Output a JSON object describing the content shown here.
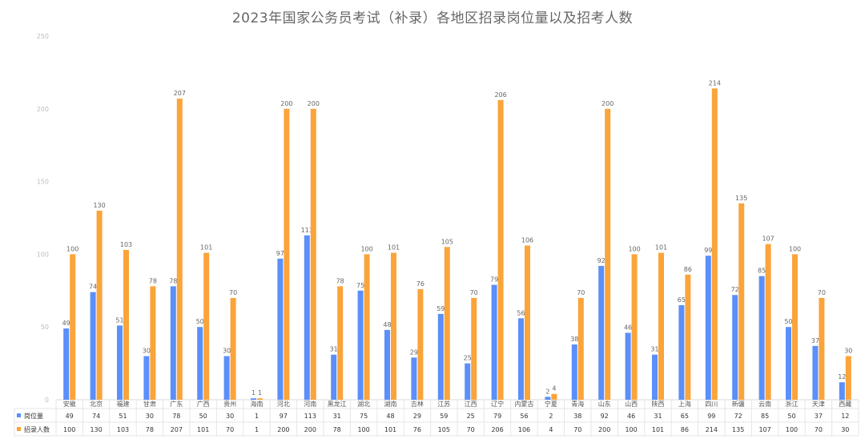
{
  "chart_data": {
    "type": "bar",
    "title": "2023年国家公务员考试（补录）各地区招录岗位量以及招考人数",
    "ylim": [
      0,
      250
    ],
    "yticks": [
      0,
      50,
      100,
      150,
      200,
      250
    ],
    "grid": false,
    "legend_position": "bottom-left-table",
    "categories": [
      "安徽",
      "北京",
      "福建",
      "甘肃",
      "广东",
      "广西",
      "贵州",
      "海南",
      "河北",
      "河南",
      "黑龙江",
      "湖北",
      "湖南",
      "吉林",
      "江苏",
      "江西",
      "辽宁",
      "内蒙古",
      "宁夏",
      "青海",
      "山东",
      "山西",
      "陕西",
      "上海",
      "四川",
      "新疆",
      "云南",
      "浙江",
      "天津",
      "西藏"
    ],
    "series": [
      {
        "name": "岗位量",
        "color": "#5b8ff9",
        "values": [
          49,
          74,
          51,
          30,
          78,
          50,
          30,
          1,
          97,
          113,
          31,
          75,
          48,
          29,
          59,
          25,
          79,
          56,
          2,
          38,
          92,
          46,
          31,
          65,
          99,
          72,
          85,
          50,
          37,
          12
        ]
      },
      {
        "name": "招录人数",
        "color": "#faa43a",
        "values": [
          100,
          130,
          103,
          78,
          207,
          101,
          70,
          1,
          200,
          200,
          78,
          100,
          101,
          76,
          105,
          70,
          206,
          106,
          4,
          70,
          200,
          100,
          101,
          86,
          214,
          135,
          107,
          100,
          70,
          30
        ]
      }
    ]
  }
}
